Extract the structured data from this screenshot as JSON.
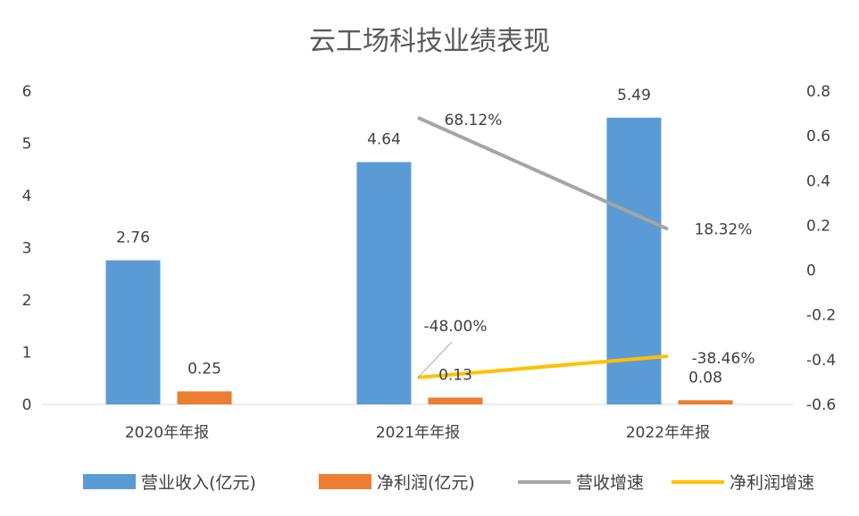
{
  "chart_data": {
    "type": "bar+line",
    "title": "云工场科技业绩表现",
    "categories": [
      "2020年年报",
      "2021年年报",
      "2022年年报"
    ],
    "left_axis": {
      "min": 0,
      "max": 6,
      "ticks": [
        "0",
        "1",
        "2",
        "3",
        "4",
        "5",
        "6"
      ]
    },
    "right_axis": {
      "min": -0.6,
      "max": 0.8,
      "ticks": [
        "-0.6",
        "-0.4",
        "-0.2",
        "0",
        "0.2",
        "0.4",
        "0.6",
        "0.8"
      ]
    },
    "grid": false,
    "legend_position": "bottom",
    "series": [
      {
        "name": "营业收入(亿元)",
        "kind": "bar",
        "axis": "left",
        "color": "#5b9bd5",
        "values": [
          2.76,
          4.64,
          5.49
        ],
        "labels": [
          "2.76",
          "4.64",
          "5.49"
        ]
      },
      {
        "name": "净利润(亿元)",
        "kind": "bar",
        "axis": "left",
        "color": "#ed7d31",
        "values": [
          0.25,
          0.13,
          0.08
        ],
        "labels": [
          "0.25",
          "0.13",
          "0.08"
        ]
      },
      {
        "name": "营收增速",
        "kind": "line",
        "axis": "right",
        "color": "#a5a5a5",
        "values": [
          null,
          0.6812,
          0.1832
        ],
        "labels": [
          "",
          "68.12%",
          "18.32%"
        ]
      },
      {
        "name": "净利润增速",
        "kind": "line",
        "axis": "right",
        "color": "#ffc000",
        "values": [
          null,
          -0.48,
          -0.3846
        ],
        "labels": [
          "",
          "-48.00%",
          "-38.46%"
        ]
      }
    ]
  }
}
